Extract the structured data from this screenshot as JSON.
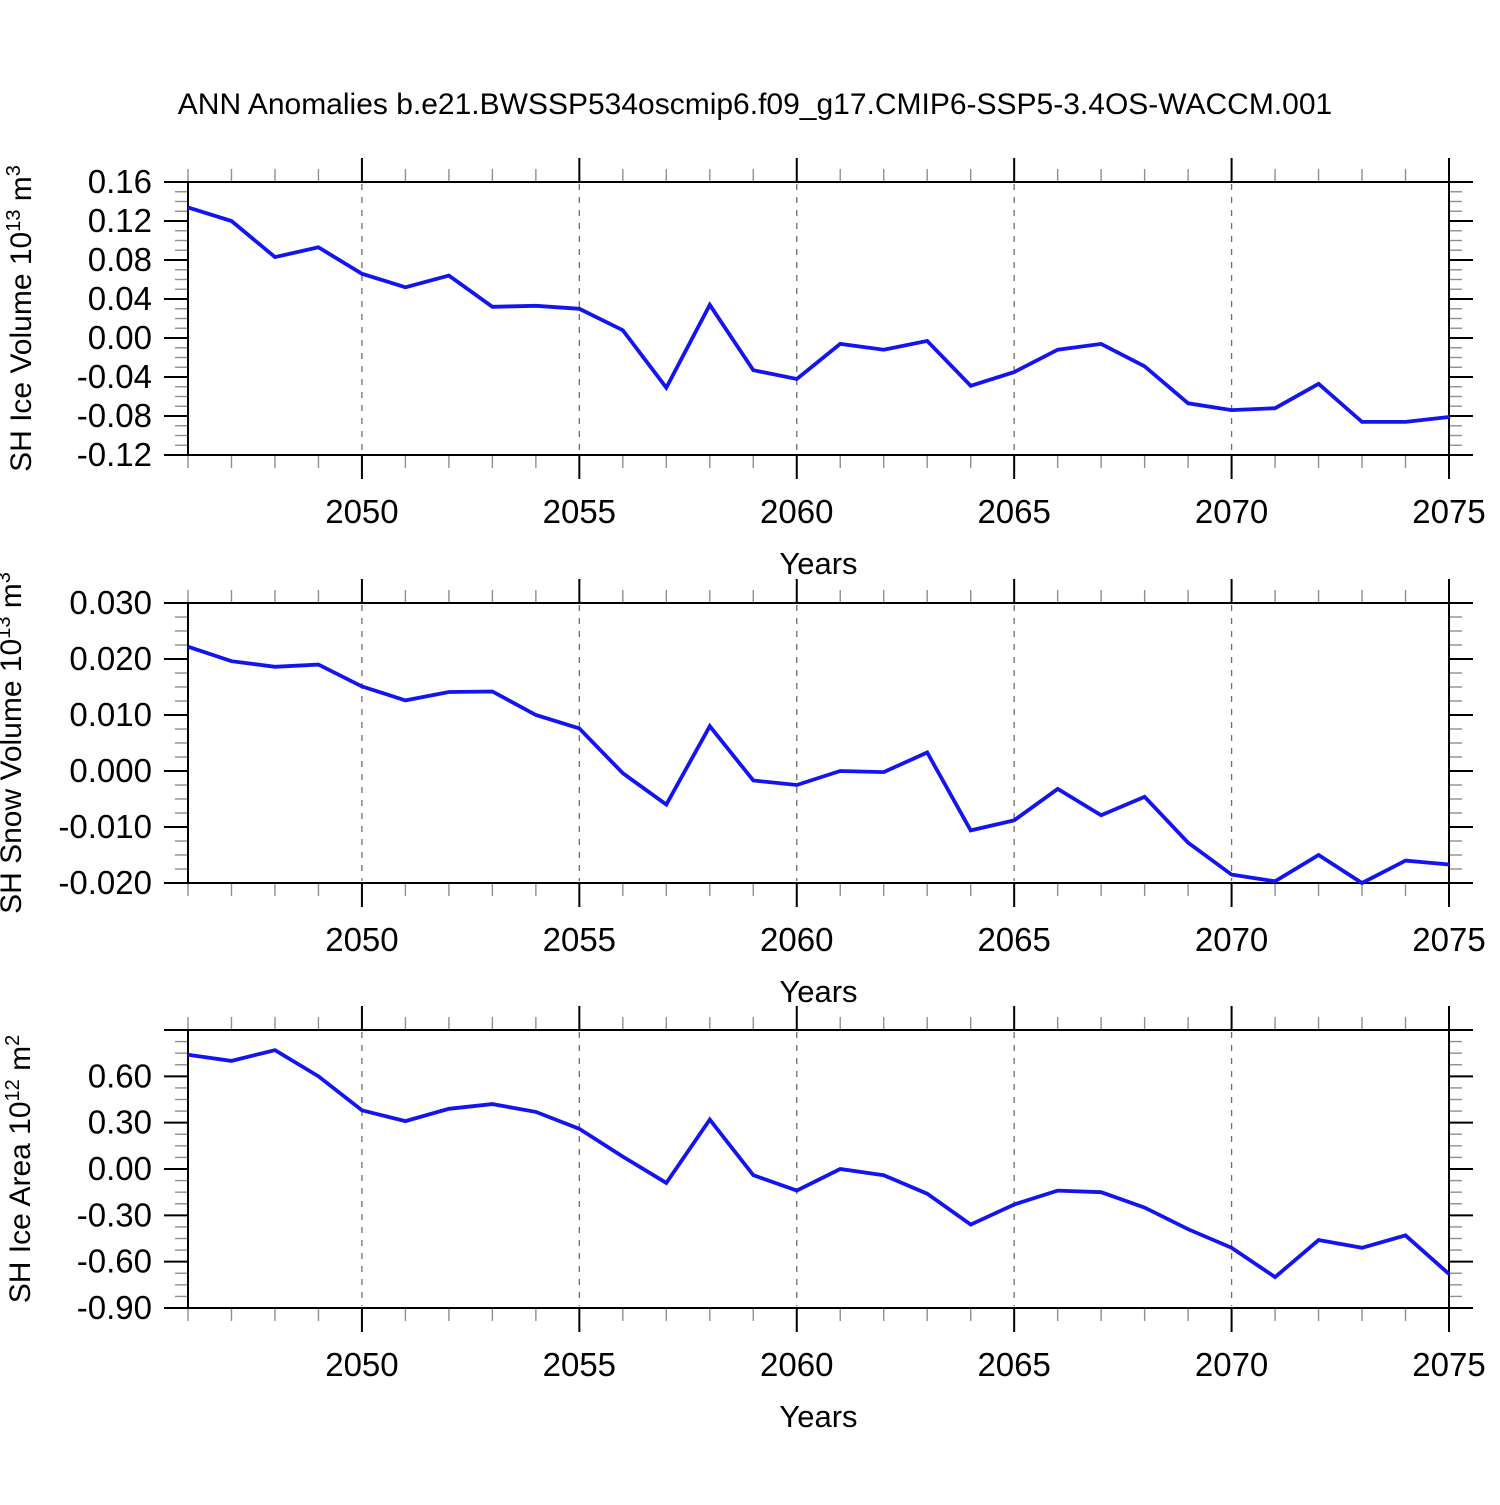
{
  "chart_data": {
    "type": "line",
    "title": "ANN Anomalies b.e21.BWSSP534oscmip6.f09_g17.CMIP6-SSP5-3.4OS-WACCM.001",
    "line_color": "#1414f0",
    "x": {
      "label": "Years",
      "start": 2046,
      "end": 2075,
      "major_ticks": [
        2050,
        2055,
        2060,
        2065,
        2070,
        2075
      ],
      "minor_step": 1,
      "grid_years": [
        2050,
        2055,
        2060,
        2065,
        2070
      ]
    },
    "years": [
      2046,
      2047,
      2048,
      2049,
      2050,
      2051,
      2052,
      2053,
      2054,
      2055,
      2056,
      2057,
      2058,
      2059,
      2060,
      2061,
      2062,
      2063,
      2064,
      2065,
      2066,
      2067,
      2068,
      2069,
      2070,
      2071,
      2072,
      2073,
      2074,
      2075
    ],
    "panels": [
      {
        "id": "sh-ice-volume",
        "ylabel_parts": [
          {
            "t": "SH Ice Volume 10"
          },
          {
            "t": "13",
            "sup": true
          },
          {
            "t": " m"
          },
          {
            "t": "3",
            "sup": true
          }
        ],
        "ymin": -0.12,
        "ymax": 0.16,
        "ymajor": 0.04,
        "yminor_div": 4,
        "ytick_labels": [
          "0.16",
          "0.12",
          "0.08",
          "0.04",
          "0.00",
          "-0.04",
          "-0.08",
          "-0.12"
        ],
        "values": [
          0.134,
          0.12,
          0.083,
          0.093,
          0.066,
          0.052,
          0.064,
          0.032,
          0.033,
          0.03,
          0.008,
          -0.051,
          0.034,
          -0.033,
          -0.042,
          -0.006,
          -0.012,
          -0.003,
          -0.049,
          -0.035,
          -0.012,
          -0.006,
          -0.029,
          -0.067,
          -0.074,
          -0.072,
          -0.047,
          -0.086,
          -0.086,
          -0.081
        ]
      },
      {
        "id": "sh-snow-volume",
        "ylabel_parts": [
          {
            "t": "SH Snow Volume 10"
          },
          {
            "t": "13",
            "sup": true
          },
          {
            "t": " m"
          },
          {
            "t": "3",
            "sup": true
          }
        ],
        "ymin": -0.02,
        "ymax": 0.03,
        "ymajor": 0.01,
        "yminor_div": 4,
        "ytick_labels": [
          "0.030",
          "0.020",
          "0.010",
          "0.000",
          "-0.010",
          "-0.020"
        ],
        "values": [
          0.0222,
          0.0196,
          0.0186,
          0.019,
          0.0151,
          0.0126,
          0.0141,
          0.0142,
          0.01,
          0.0076,
          -0.0004,
          -0.006,
          0.008,
          -0.0017,
          -0.0025,
          0.0,
          -0.0002,
          0.0033,
          -0.0106,
          -0.0088,
          -0.0032,
          -0.0079,
          -0.0046,
          -0.0128,
          -0.0185,
          -0.0197,
          -0.015,
          -0.02,
          -0.016,
          -0.0167
        ]
      },
      {
        "id": "sh-ice-area",
        "ylabel_parts": [
          {
            "t": "SH Ice Area 10"
          },
          {
            "t": "12",
            "sup": true
          },
          {
            "t": " m"
          },
          {
            "t": "2",
            "sup": true
          }
        ],
        "ymin": -0.9,
        "ymax": 0.9,
        "ymajor": 0.3,
        "yminor_div": 4,
        "ytick_labels": [
          "",
          "0.60",
          "0.30",
          "0.00",
          "-0.30",
          "-0.60",
          "-0.90"
        ],
        "values": [
          0.74,
          0.7,
          0.77,
          0.6,
          0.38,
          0.31,
          0.39,
          0.42,
          0.37,
          0.26,
          0.08,
          -0.09,
          0.32,
          -0.04,
          -0.14,
          0.0,
          -0.04,
          -0.16,
          -0.36,
          -0.23,
          -0.14,
          -0.15,
          -0.25,
          -0.39,
          -0.51,
          -0.7,
          -0.46,
          -0.51,
          -0.43,
          -0.68
        ]
      }
    ]
  }
}
